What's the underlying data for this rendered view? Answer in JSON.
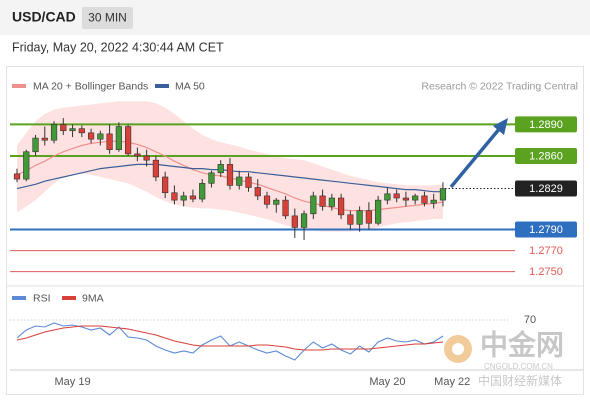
{
  "header": {
    "symbol": "USD/CAD",
    "interval": "30 MIN",
    "timestamp": "Friday, May 20, 2022 4:30:44 AM CET"
  },
  "chart_data": [
    {
      "type": "candlestick",
      "categories": [
        null,
        null,
        null,
        null,
        null,
        null,
        "May 19",
        null,
        null,
        null,
        null,
        null,
        null,
        null,
        null,
        null,
        null,
        null,
        null,
        null,
        null,
        null,
        null,
        null,
        null,
        null,
        null,
        null,
        null,
        null,
        null,
        null,
        null,
        null,
        null,
        null,
        null,
        null,
        null,
        null,
        "May 20",
        null,
        null,
        null,
        null,
        null,
        null,
        "May 22"
      ],
      "open": [
        1.2843,
        1.2838,
        1.2864,
        1.2877,
        1.2875,
        1.289,
        1.2884,
        1.2886,
        1.2882,
        1.2876,
        1.2881,
        1.2866,
        1.2888,
        1.2862,
        1.286,
        1.2856,
        1.284,
        1.2825,
        1.2818,
        1.2822,
        1.2819,
        1.2834,
        1.2844,
        1.2852,
        1.2832,
        1.284,
        1.283,
        1.2822,
        1.2814,
        1.2818,
        1.2803,
        1.2792,
        1.2805,
        1.2822,
        1.2812,
        1.282,
        1.2804,
        1.2795,
        1.2808,
        1.2796,
        1.2818,
        1.2824,
        1.282,
        1.2818,
        1.2822,
        1.2815,
        1.2818,
        null
      ],
      "high": [
        1.2848,
        1.2866,
        1.288,
        1.2888,
        1.2893,
        1.2896,
        1.289,
        1.2889,
        1.2886,
        1.2884,
        1.289,
        1.2892,
        1.289,
        1.2868,
        1.2866,
        1.286,
        1.2845,
        1.2832,
        1.2826,
        1.2828,
        1.2838,
        1.2846,
        1.2856,
        1.2858,
        1.2846,
        1.2844,
        1.2838,
        1.2826,
        1.282,
        1.2822,
        1.281,
        1.2808,
        1.2826,
        1.2828,
        1.2824,
        1.2824,
        1.2808,
        1.2812,
        1.2816,
        1.2822,
        1.283,
        1.2828,
        1.2826,
        1.2824,
        1.2826,
        1.2824,
        1.2835,
        null
      ],
      "low": [
        1.2835,
        1.2836,
        1.286,
        1.287,
        1.2872,
        1.288,
        1.2878,
        1.2878,
        1.2872,
        1.287,
        1.2862,
        1.2864,
        1.286,
        1.2855,
        1.285,
        1.2836,
        1.282,
        1.2814,
        1.2812,
        1.2816,
        1.2816,
        1.283,
        1.284,
        1.2828,
        1.2828,
        1.2826,
        1.2818,
        1.281,
        1.2806,
        1.28,
        1.2782,
        1.278,
        1.28,
        1.2808,
        1.2808,
        1.28,
        1.279,
        1.2788,
        1.279,
        1.2794,
        1.2814,
        1.2816,
        1.2812,
        1.2814,
        1.2812,
        1.281,
        1.2812,
        null
      ],
      "close": [
        1.2838,
        1.2864,
        1.2877,
        1.2875,
        1.289,
        1.2884,
        1.2886,
        1.2882,
        1.2876,
        1.2881,
        1.2866,
        1.2888,
        1.2862,
        1.286,
        1.2856,
        1.284,
        1.2825,
        1.2818,
        1.2822,
        1.2819,
        1.2834,
        1.2844,
        1.2852,
        1.2832,
        1.284,
        1.283,
        1.2822,
        1.2814,
        1.2818,
        1.2803,
        1.2792,
        1.2805,
        1.2822,
        1.2812,
        1.282,
        1.2804,
        1.2795,
        1.2808,
        1.2796,
        1.2818,
        1.2824,
        1.282,
        1.2818,
        1.2822,
        1.2815,
        1.2818,
        1.2829,
        null
      ],
      "up_color": "#3f9a37",
      "down_color": "#d8403a",
      "series": [
        {
          "name": "MA 20 + Bollinger Bands",
          "color": "#f0908c",
          "band_color": "#fde2e1",
          "values": [
            1.2842,
            1.2846,
            1.2851,
            1.2855,
            1.286,
            1.2864,
            1.2867,
            1.287,
            1.2872,
            1.2873,
            1.2874,
            1.2874,
            1.2873,
            1.2871,
            1.2868,
            1.2864,
            1.286,
            1.2855,
            1.2851,
            1.2847,
            1.2844,
            1.2842,
            1.2841,
            1.2839,
            1.2837,
            1.2835,
            1.2833,
            1.283,
            1.2827,
            1.2824,
            1.282,
            1.2817,
            1.2815,
            1.2813,
            1.2811,
            1.2809,
            1.2808,
            1.2808,
            1.2808,
            1.2809,
            1.281,
            1.2811,
            1.2812,
            1.2813,
            1.2814,
            1.2815,
            1.2816,
            null
          ],
          "upper": [
            1.287,
            1.2882,
            1.2893,
            1.29,
            1.2904,
            1.2906,
            1.2907,
            1.2908,
            1.2909,
            1.291,
            1.2911,
            1.2912,
            1.2912,
            1.2912,
            1.2912,
            1.291,
            1.2906,
            1.29,
            1.2893,
            1.2886,
            1.288,
            1.2876,
            1.2873,
            1.2871,
            1.2869,
            1.2866,
            1.2864,
            1.2862,
            1.286,
            1.2858,
            1.2857,
            1.2856,
            1.2853,
            1.285,
            1.2847,
            1.2844,
            1.2841,
            1.2839,
            1.2837,
            1.2835,
            1.2834,
            1.2833,
            1.2832,
            1.2832,
            1.2832,
            1.2832,
            1.2833,
            null
          ],
          "lower": [
            1.2806,
            1.2812,
            1.2818,
            1.2826,
            1.2834,
            1.284,
            1.2842,
            1.2843,
            1.2842,
            1.284,
            1.2838,
            1.2836,
            1.2834,
            1.283,
            1.2826,
            1.2821,
            1.2817,
            1.2814,
            1.2812,
            1.2811,
            1.281,
            1.281,
            1.2809,
            1.2808,
            1.2806,
            1.2804,
            1.2802,
            1.28,
            1.2797,
            1.2794,
            1.2792,
            1.279,
            1.2789,
            1.2788,
            1.2788,
            1.2788,
            1.2788,
            1.2789,
            1.279,
            1.2792,
            1.2794,
            1.2796,
            1.2797,
            1.2798,
            1.2799,
            1.28,
            1.28,
            null
          ]
        },
        {
          "name": "MA 50",
          "color": "#3b5f99",
          "values": [
            1.2829,
            1.2831,
            1.2833,
            1.2836,
            1.2838,
            1.284,
            1.2842,
            1.2844,
            1.2846,
            1.2848,
            1.2849,
            1.285,
            1.2851,
            1.2852,
            1.2852,
            1.2852,
            1.2851,
            1.285,
            1.2849,
            1.2848,
            1.2848,
            1.2847,
            1.2847,
            1.2846,
            1.2845,
            1.2845,
            1.2844,
            1.2843,
            1.2842,
            1.2841,
            1.284,
            1.2839,
            1.2838,
            1.2837,
            1.2836,
            1.2835,
            1.2834,
            1.2833,
            1.2832,
            1.2831,
            1.283,
            1.2829,
            1.2828,
            1.2828,
            1.2827,
            1.2826,
            1.2826,
            null
          ]
        }
      ],
      "levels": [
        {
          "value": 1.289,
          "label": "1.2890",
          "color": "#5aa21f",
          "line": "solid",
          "tag": "filled"
        },
        {
          "value": 1.286,
          "label": "1.2860",
          "color": "#5aa21f",
          "line": "solid",
          "tag": "filled"
        },
        {
          "value": 1.2829,
          "label": "1.2829",
          "color": "#222222",
          "line": "dotted",
          "tag": "filled"
        },
        {
          "value": 1.279,
          "label": "1.2790",
          "color": "#2f6fbf",
          "line": "solid",
          "tag": "filled"
        },
        {
          "value": 1.277,
          "label": "1.2770",
          "color": "#e05a55",
          "line": "solid",
          "tag": "plain"
        },
        {
          "value": 1.275,
          "label": "1.2750",
          "color": "#e05a55",
          "line": "solid",
          "tag": "plain"
        }
      ],
      "ylim": [
        1.2742,
        1.2918
      ],
      "source": "Research © 2022 Trading Central"
    },
    {
      "type": "line",
      "series": [
        {
          "name": "RSI",
          "color": "#5b8bd6",
          "values": [
            52,
            60,
            64,
            63,
            67,
            64,
            65,
            63,
            60,
            62,
            55,
            63,
            53,
            52,
            50,
            44,
            40,
            37,
            39,
            37,
            45,
            50,
            54,
            44,
            48,
            44,
            40,
            37,
            39,
            34,
            30,
            40,
            48,
            42,
            46,
            40,
            36,
            44,
            38,
            48,
            52,
            49,
            48,
            50,
            46,
            48,
            54,
            null
          ]
        },
        {
          "name": "9MA",
          "color": "#d8403a",
          "values": [
            50,
            52,
            55,
            58,
            60,
            62,
            63,
            64,
            64,
            64,
            63,
            62,
            61,
            59,
            57,
            55,
            52,
            49,
            47,
            45,
            44,
            44,
            44,
            44,
            44,
            44,
            45,
            45,
            44,
            43,
            41,
            40,
            40,
            40,
            41,
            41,
            41,
            41,
            41,
            42,
            43,
            44,
            45,
            46,
            46,
            47,
            48,
            null
          ]
        }
      ],
      "ylim": [
        20,
        80
      ],
      "yticks": [
        70
      ]
    }
  ],
  "watermark": {
    "brand": "中金网",
    "site": "CNGOLD.COM.CN",
    "slogan": "中国财经新媒体"
  }
}
